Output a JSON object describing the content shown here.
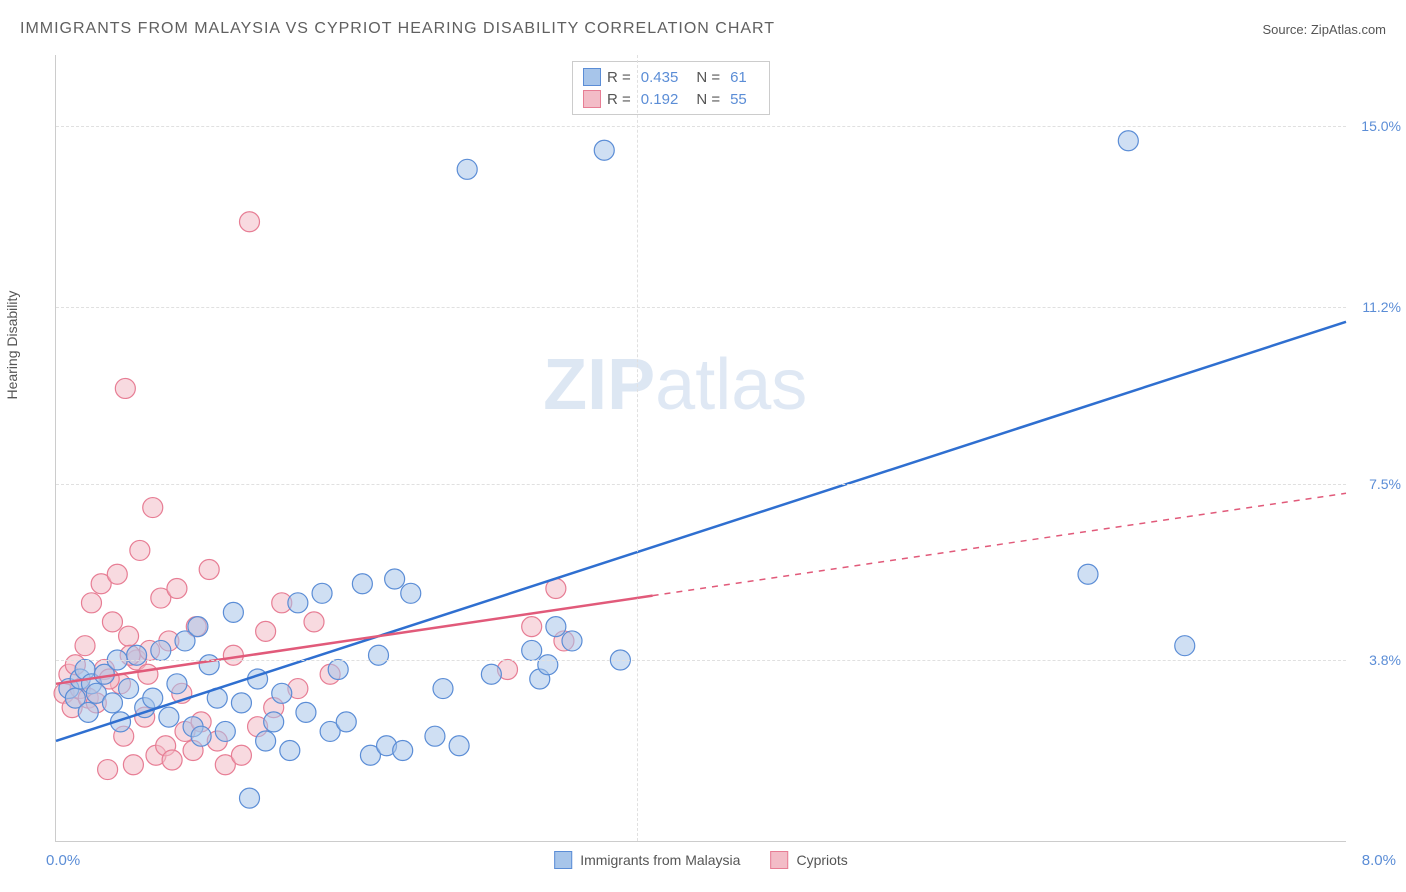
{
  "title": "IMMIGRANTS FROM MALAYSIA VS CYPRIOT HEARING DISABILITY CORRELATION CHART",
  "source": "Source: ZipAtlas.com",
  "ylabel": "Hearing Disability",
  "watermark_bold": "ZIP",
  "watermark_light": "atlas",
  "chart": {
    "type": "scatter",
    "xlim": [
      0,
      8.0
    ],
    "ylim": [
      0,
      16.5
    ],
    "x_ticks": [
      {
        "v": 0,
        "label": "0.0%"
      },
      {
        "v": 8.0,
        "label": "8.0%"
      }
    ],
    "y_gridlines": [
      {
        "v": 3.8,
        "label": "3.8%"
      },
      {
        "v": 7.5,
        "label": "7.5%"
      },
      {
        "v": 11.2,
        "label": "11.2%"
      },
      {
        "v": 15.0,
        "label": "15.0%"
      }
    ],
    "x_gridlines": [
      3.6
    ],
    "background_color": "#ffffff",
    "grid_color": "#e0e0e0",
    "marker_radius": 10,
    "marker_opacity": 0.55,
    "marker_stroke_width": 1.2,
    "line_width": 2.5,
    "series": [
      {
        "name": "Immigrants from Malaysia",
        "fill": "#a7c5ea",
        "stroke": "#5b8dd6",
        "line_color": "#2f6fd0",
        "trend": {
          "x1": 0.0,
          "y1": 2.1,
          "x2": 8.0,
          "y2": 10.9,
          "solid_until_x": 8.0
        },
        "stats": {
          "R": "0.435",
          "N": "61"
        },
        "points": [
          [
            0.08,
            3.2
          ],
          [
            0.12,
            3.0
          ],
          [
            0.15,
            3.4
          ],
          [
            0.18,
            3.6
          ],
          [
            0.2,
            2.7
          ],
          [
            0.22,
            3.3
          ],
          [
            0.25,
            3.1
          ],
          [
            0.3,
            3.5
          ],
          [
            0.35,
            2.9
          ],
          [
            0.38,
            3.8
          ],
          [
            0.4,
            2.5
          ],
          [
            0.45,
            3.2
          ],
          [
            0.5,
            3.9
          ],
          [
            0.55,
            2.8
          ],
          [
            0.6,
            3.0
          ],
          [
            0.65,
            4.0
          ],
          [
            0.7,
            2.6
          ],
          [
            0.75,
            3.3
          ],
          [
            0.8,
            4.2
          ],
          [
            0.85,
            2.4
          ],
          [
            0.88,
            4.5
          ],
          [
            0.9,
            2.2
          ],
          [
            0.95,
            3.7
          ],
          [
            1.0,
            3.0
          ],
          [
            1.05,
            2.3
          ],
          [
            1.1,
            4.8
          ],
          [
            1.15,
            2.9
          ],
          [
            1.2,
            0.9
          ],
          [
            1.25,
            3.4
          ],
          [
            1.3,
            2.1
          ],
          [
            1.35,
            2.5
          ],
          [
            1.4,
            3.1
          ],
          [
            1.45,
            1.9
          ],
          [
            1.5,
            5.0
          ],
          [
            1.55,
            2.7
          ],
          [
            1.65,
            5.2
          ],
          [
            1.7,
            2.3
          ],
          [
            1.75,
            3.6
          ],
          [
            1.8,
            2.5
          ],
          [
            1.9,
            5.4
          ],
          [
            1.95,
            1.8
          ],
          [
            2.0,
            3.9
          ],
          [
            2.05,
            2.0
          ],
          [
            2.1,
            5.5
          ],
          [
            2.15,
            1.9
          ],
          [
            2.2,
            5.2
          ],
          [
            2.35,
            2.2
          ],
          [
            2.4,
            3.2
          ],
          [
            2.5,
            2.0
          ],
          [
            2.55,
            14.1
          ],
          [
            2.7,
            3.5
          ],
          [
            2.95,
            4.0
          ],
          [
            3.0,
            3.4
          ],
          [
            3.05,
            3.7
          ],
          [
            3.2,
            4.2
          ],
          [
            3.4,
            14.5
          ],
          [
            3.5,
            3.8
          ],
          [
            6.4,
            5.6
          ],
          [
            6.65,
            14.7
          ],
          [
            7.0,
            4.1
          ],
          [
            3.1,
            4.5
          ]
        ]
      },
      {
        "name": "Cypriots",
        "fill": "#f3bcc7",
        "stroke": "#e77d94",
        "line_color": "#e15a7a",
        "trend": {
          "x1": 0.0,
          "y1": 3.3,
          "x2": 8.0,
          "y2": 7.3,
          "solid_until_x": 3.7
        },
        "stats": {
          "R": "0.192",
          "N": "55"
        },
        "points": [
          [
            0.05,
            3.1
          ],
          [
            0.08,
            3.5
          ],
          [
            0.1,
            2.8
          ],
          [
            0.12,
            3.7
          ],
          [
            0.15,
            3.2
          ],
          [
            0.18,
            4.1
          ],
          [
            0.2,
            3.0
          ],
          [
            0.22,
            5.0
          ],
          [
            0.25,
            2.9
          ],
          [
            0.28,
            5.4
          ],
          [
            0.3,
            3.6
          ],
          [
            0.32,
            1.5
          ],
          [
            0.35,
            4.6
          ],
          [
            0.38,
            5.6
          ],
          [
            0.4,
            3.3
          ],
          [
            0.42,
            2.2
          ],
          [
            0.43,
            9.5
          ],
          [
            0.45,
            4.3
          ],
          [
            0.48,
            1.6
          ],
          [
            0.5,
            3.8
          ],
          [
            0.52,
            6.1
          ],
          [
            0.55,
            2.6
          ],
          [
            0.58,
            4.0
          ],
          [
            0.6,
            7.0
          ],
          [
            0.62,
            1.8
          ],
          [
            0.65,
            5.1
          ],
          [
            0.68,
            2.0
          ],
          [
            0.7,
            4.2
          ],
          [
            0.72,
            1.7
          ],
          [
            0.75,
            5.3
          ],
          [
            0.78,
            3.1
          ],
          [
            0.8,
            2.3
          ],
          [
            0.85,
            1.9
          ],
          [
            0.87,
            4.5
          ],
          [
            0.9,
            2.5
          ],
          [
            0.95,
            5.7
          ],
          [
            1.0,
            2.1
          ],
          [
            1.05,
            1.6
          ],
          [
            1.1,
            3.9
          ],
          [
            1.15,
            1.8
          ],
          [
            1.2,
            13.0
          ],
          [
            1.25,
            2.4
          ],
          [
            1.3,
            4.4
          ],
          [
            1.35,
            2.8
          ],
          [
            1.4,
            5.0
          ],
          [
            1.5,
            3.2
          ],
          [
            1.6,
            4.6
          ],
          [
            1.7,
            3.5
          ],
          [
            2.8,
            3.6
          ],
          [
            2.95,
            4.5
          ],
          [
            3.1,
            5.3
          ],
          [
            3.15,
            4.2
          ],
          [
            0.33,
            3.4
          ],
          [
            0.46,
            3.9
          ],
          [
            0.57,
            3.5
          ]
        ]
      }
    ]
  },
  "legend": {
    "series1_label": "Immigrants from Malaysia",
    "series2_label": "Cypriots"
  },
  "stats_labels": {
    "R": "R =",
    "N": "N ="
  }
}
